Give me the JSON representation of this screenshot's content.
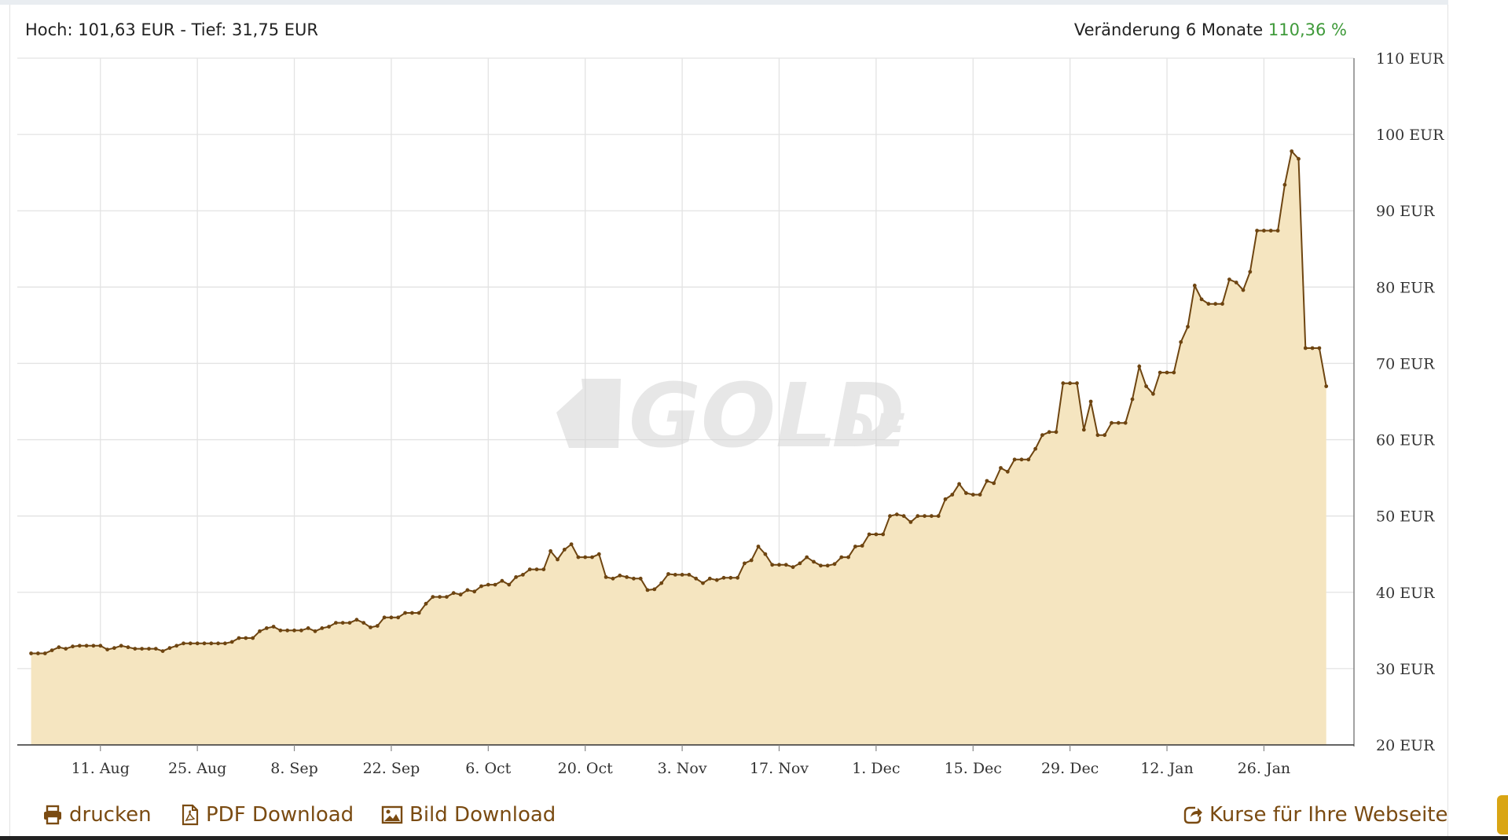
{
  "header": {
    "hoch_label": "Hoch:",
    "hoch_value": "101,63 EUR",
    "sep": "-",
    "tief_label": "Tief:",
    "tief_value": "31,75 EUR",
    "change_label": "Veränderung 6 Monate",
    "change_value": "110,36 %"
  },
  "watermark": {
    "main": "GOLD",
    "suffix": ".DE"
  },
  "footer": {
    "print_label": "drucken",
    "pdf_label": "PDF Download",
    "image_label": "Bild Download",
    "embed_label": "Kurse für Ihre Webseite"
  },
  "colors": {
    "line": "#6e4511",
    "fill": "#f5e5c0",
    "grid": "#e3e3e3",
    "positive": "#3f9a3a",
    "link": "#7a4b12"
  },
  "chart_data": {
    "type": "area",
    "currency_unit": "EUR",
    "ylim": [
      20,
      110
    ],
    "yticks": [
      20,
      30,
      40,
      50,
      60,
      70,
      80,
      90,
      100,
      110
    ],
    "ytick_labels": [
      "20 EUR",
      "30 EUR",
      "40 EUR",
      "50 EUR",
      "60 EUR",
      "70 EUR",
      "80 EUR",
      "90 EUR",
      "100 EUR",
      "110 EUR"
    ],
    "xlim": [
      "2025-07-30",
      "2026-02-08"
    ],
    "xticks": [
      "2025-08-11",
      "2025-08-25",
      "2025-09-08",
      "2025-09-22",
      "2025-10-06",
      "2025-10-20",
      "2025-11-03",
      "2025-11-17",
      "2025-12-01",
      "2025-12-15",
      "2025-12-29",
      "2026-01-12",
      "2026-01-26"
    ],
    "xtick_labels": [
      "11. Aug",
      "25. Aug",
      "8. Sep",
      "22. Sep",
      "6. Oct",
      "20. Oct",
      "3. Nov",
      "17. Nov",
      "1. Dec",
      "15. Dec",
      "29. Dec",
      "12. Jan",
      "26. Jan"
    ],
    "grid": true,
    "legend": "none",
    "series": [
      {
        "points": [
          [
            "2025-08-01",
            32.0
          ],
          [
            "2025-08-02",
            32.0
          ],
          [
            "2025-08-03",
            32.0
          ],
          [
            "2025-08-04",
            32.4
          ],
          [
            "2025-08-05",
            32.8
          ],
          [
            "2025-08-06",
            32.6
          ],
          [
            "2025-08-07",
            32.9
          ],
          [
            "2025-08-08",
            33.0
          ],
          [
            "2025-08-09",
            33.0
          ],
          [
            "2025-08-10",
            33.0
          ],
          [
            "2025-08-11",
            33.0
          ],
          [
            "2025-08-12",
            32.5
          ],
          [
            "2025-08-13",
            32.7
          ],
          [
            "2025-08-14",
            33.0
          ],
          [
            "2025-08-15",
            32.8
          ],
          [
            "2025-08-16",
            32.6
          ],
          [
            "2025-08-17",
            32.6
          ],
          [
            "2025-08-18",
            32.6
          ],
          [
            "2025-08-19",
            32.6
          ],
          [
            "2025-08-20",
            32.3
          ],
          [
            "2025-08-21",
            32.7
          ],
          [
            "2025-08-22",
            33.0
          ],
          [
            "2025-08-23",
            33.3
          ],
          [
            "2025-08-24",
            33.3
          ],
          [
            "2025-08-25",
            33.3
          ],
          [
            "2025-08-26",
            33.3
          ],
          [
            "2025-08-27",
            33.3
          ],
          [
            "2025-08-28",
            33.3
          ],
          [
            "2025-08-29",
            33.3
          ],
          [
            "2025-08-30",
            33.5
          ],
          [
            "2025-08-31",
            34.0
          ],
          [
            "2025-09-01",
            34.0
          ],
          [
            "2025-09-02",
            34.0
          ],
          [
            "2025-09-03",
            34.9
          ],
          [
            "2025-09-04",
            35.3
          ],
          [
            "2025-09-05",
            35.5
          ],
          [
            "2025-09-06",
            35.0
          ],
          [
            "2025-09-07",
            35.0
          ],
          [
            "2025-09-08",
            35.0
          ],
          [
            "2025-09-09",
            35.0
          ],
          [
            "2025-09-10",
            35.3
          ],
          [
            "2025-09-11",
            34.9
          ],
          [
            "2025-09-12",
            35.3
          ],
          [
            "2025-09-13",
            35.5
          ],
          [
            "2025-09-14",
            36.0
          ],
          [
            "2025-09-15",
            36.0
          ],
          [
            "2025-09-16",
            36.0
          ],
          [
            "2025-09-17",
            36.4
          ],
          [
            "2025-09-18",
            36.0
          ],
          [
            "2025-09-19",
            35.4
          ],
          [
            "2025-09-20",
            35.6
          ],
          [
            "2025-09-21",
            36.7
          ],
          [
            "2025-09-22",
            36.7
          ],
          [
            "2025-09-23",
            36.7
          ],
          [
            "2025-09-24",
            37.3
          ],
          [
            "2025-09-25",
            37.3
          ],
          [
            "2025-09-26",
            37.3
          ],
          [
            "2025-09-27",
            38.5
          ],
          [
            "2025-09-28",
            39.4
          ],
          [
            "2025-09-29",
            39.4
          ],
          [
            "2025-09-30",
            39.4
          ],
          [
            "2025-10-01",
            39.9
          ],
          [
            "2025-10-02",
            39.7
          ],
          [
            "2025-10-03",
            40.3
          ],
          [
            "2025-10-04",
            40.1
          ],
          [
            "2025-10-05",
            40.8
          ],
          [
            "2025-10-06",
            41.0
          ],
          [
            "2025-10-07",
            41.0
          ],
          [
            "2025-10-08",
            41.5
          ],
          [
            "2025-10-09",
            41.0
          ],
          [
            "2025-10-10",
            42.0
          ],
          [
            "2025-10-11",
            42.3
          ],
          [
            "2025-10-12",
            43.0
          ],
          [
            "2025-10-13",
            43.0
          ],
          [
            "2025-10-14",
            43.0
          ],
          [
            "2025-10-15",
            45.4
          ],
          [
            "2025-10-16",
            44.3
          ],
          [
            "2025-10-17",
            45.6
          ],
          [
            "2025-10-18",
            46.3
          ],
          [
            "2025-10-19",
            44.6
          ],
          [
            "2025-10-20",
            44.6
          ],
          [
            "2025-10-21",
            44.6
          ],
          [
            "2025-10-22",
            45.0
          ],
          [
            "2025-10-23",
            42.0
          ],
          [
            "2025-10-24",
            41.8
          ],
          [
            "2025-10-25",
            42.2
          ],
          [
            "2025-10-26",
            42.0
          ],
          [
            "2025-10-27",
            41.8
          ],
          [
            "2025-10-28",
            41.8
          ],
          [
            "2025-10-29",
            40.3
          ],
          [
            "2025-10-30",
            40.4
          ],
          [
            "2025-10-31",
            41.2
          ],
          [
            "2025-11-01",
            42.4
          ],
          [
            "2025-11-02",
            42.3
          ],
          [
            "2025-11-03",
            42.3
          ],
          [
            "2025-11-04",
            42.3
          ],
          [
            "2025-11-05",
            41.8
          ],
          [
            "2025-11-06",
            41.2
          ],
          [
            "2025-11-07",
            41.8
          ],
          [
            "2025-11-08",
            41.6
          ],
          [
            "2025-11-09",
            41.9
          ],
          [
            "2025-11-10",
            41.9
          ],
          [
            "2025-11-11",
            41.9
          ],
          [
            "2025-11-12",
            43.8
          ],
          [
            "2025-11-13",
            44.2
          ],
          [
            "2025-11-14",
            46.0
          ],
          [
            "2025-11-15",
            45.0
          ],
          [
            "2025-11-16",
            43.6
          ],
          [
            "2025-11-17",
            43.6
          ],
          [
            "2025-11-18",
            43.6
          ],
          [
            "2025-11-19",
            43.3
          ],
          [
            "2025-11-20",
            43.8
          ],
          [
            "2025-11-21",
            44.6
          ],
          [
            "2025-11-22",
            44.0
          ],
          [
            "2025-11-23",
            43.5
          ],
          [
            "2025-11-24",
            43.5
          ],
          [
            "2025-11-25",
            43.7
          ],
          [
            "2025-11-26",
            44.6
          ],
          [
            "2025-11-27",
            44.6
          ],
          [
            "2025-11-28",
            46.0
          ],
          [
            "2025-11-29",
            46.1
          ],
          [
            "2025-11-30",
            47.6
          ],
          [
            "2025-12-01",
            47.6
          ],
          [
            "2025-12-02",
            47.6
          ],
          [
            "2025-12-03",
            50.0
          ],
          [
            "2025-12-04",
            50.2
          ],
          [
            "2025-12-05",
            50.0
          ],
          [
            "2025-12-06",
            49.2
          ],
          [
            "2025-12-07",
            50.0
          ],
          [
            "2025-12-08",
            50.0
          ],
          [
            "2025-12-09",
            50.0
          ],
          [
            "2025-12-10",
            50.0
          ],
          [
            "2025-12-11",
            52.2
          ],
          [
            "2025-12-12",
            52.8
          ],
          [
            "2025-12-13",
            54.2
          ],
          [
            "2025-12-14",
            53.0
          ],
          [
            "2025-12-15",
            52.8
          ],
          [
            "2025-12-16",
            52.8
          ],
          [
            "2025-12-17",
            54.6
          ],
          [
            "2025-12-18",
            54.3
          ],
          [
            "2025-12-19",
            56.3
          ],
          [
            "2025-12-20",
            55.8
          ],
          [
            "2025-12-21",
            57.4
          ],
          [
            "2025-12-22",
            57.4
          ],
          [
            "2025-12-23",
            57.4
          ],
          [
            "2025-12-24",
            58.8
          ],
          [
            "2025-12-25",
            60.6
          ],
          [
            "2025-12-26",
            61.0
          ],
          [
            "2025-12-27",
            61.0
          ],
          [
            "2025-12-28",
            67.4
          ],
          [
            "2025-12-29",
            67.4
          ],
          [
            "2025-12-30",
            67.4
          ],
          [
            "2025-12-31",
            61.3
          ],
          [
            "2026-01-01",
            65.0
          ],
          [
            "2026-01-02",
            60.6
          ],
          [
            "2026-01-03",
            60.6
          ],
          [
            "2026-01-04",
            62.2
          ],
          [
            "2026-01-05",
            62.2
          ],
          [
            "2026-01-06",
            62.2
          ],
          [
            "2026-01-07",
            65.3
          ],
          [
            "2026-01-08",
            69.6
          ],
          [
            "2026-01-09",
            67.0
          ],
          [
            "2026-01-10",
            66.0
          ],
          [
            "2026-01-11",
            68.8
          ],
          [
            "2026-01-12",
            68.8
          ],
          [
            "2026-01-13",
            68.8
          ],
          [
            "2026-01-14",
            72.8
          ],
          [
            "2026-01-15",
            74.8
          ],
          [
            "2026-01-16",
            80.2
          ],
          [
            "2026-01-17",
            78.4
          ],
          [
            "2026-01-18",
            77.8
          ],
          [
            "2026-01-19",
            77.8
          ],
          [
            "2026-01-20",
            77.8
          ],
          [
            "2026-01-21",
            81.0
          ],
          [
            "2026-01-22",
            80.6
          ],
          [
            "2026-01-23",
            79.6
          ],
          [
            "2026-01-24",
            82.0
          ],
          [
            "2026-01-25",
            87.4
          ],
          [
            "2026-01-26",
            87.4
          ],
          [
            "2026-01-27",
            87.4
          ],
          [
            "2026-01-28",
            87.4
          ],
          [
            "2026-01-29",
            93.4
          ],
          [
            "2026-01-30",
            97.8
          ],
          [
            "2026-01-31",
            96.8
          ],
          [
            "2026-02-01",
            72.0
          ],
          [
            "2026-02-02",
            72.0
          ],
          [
            "2026-02-03",
            72.0
          ],
          [
            "2026-02-04",
            67.0
          ]
        ]
      }
    ]
  }
}
